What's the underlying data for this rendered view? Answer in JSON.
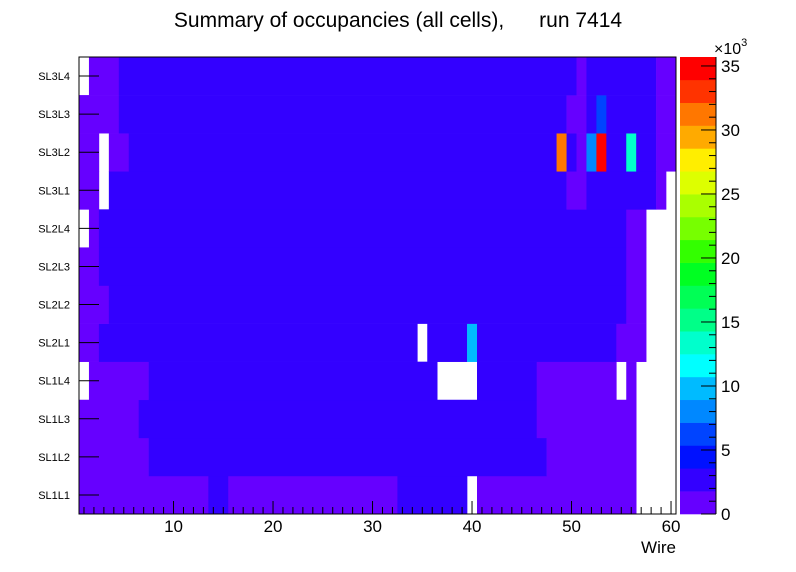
{
  "chart_data": {
    "type": "heatmap",
    "title": "Summary of occupancies (all cells),      run 7414",
    "xlabel": "Wire",
    "ylabel": "",
    "xlim": [
      0.5,
      60.5
    ],
    "x_ticks": [
      10,
      20,
      30,
      40,
      50,
      60
    ],
    "y_categories": [
      "SL1L1",
      "SL1L2",
      "SL1L3",
      "SL1L4",
      "SL2L1",
      "SL2L2",
      "SL2L3",
      "SL2L4",
      "SL3L1",
      "SL3L2",
      "SL3L3",
      "SL3L4"
    ],
    "z_range": [
      0,
      35700
    ],
    "z_multiplier_label": "×10",
    "z_multiplier_exp": "3",
    "z_ticks": [
      0,
      5,
      10,
      15,
      20,
      25,
      30,
      35
    ],
    "palette": [
      "#6600ff",
      "#3300ff",
      "#0011ff",
      "#0044ff",
      "#0088ff",
      "#00bbff",
      "#00ffff",
      "#00ffcc",
      "#00ff88",
      "#00ff55",
      "#00ff22",
      "#33ff00",
      "#77ff00",
      "#aaff00",
      "#ddff00",
      "#ffee00",
      "#ffaa00",
      "#ff7700",
      "#ff3300",
      "#ff0000"
    ],
    "rows_note": "segments per row: [first wire, last wire, occupancy]; null = empty bin",
    "rows": [
      [
        [
          1,
          13,
          900
        ],
        [
          14,
          15,
          2700
        ],
        [
          16,
          32,
          900
        ],
        [
          33,
          39,
          2700
        ],
        [
          40,
          40,
          null
        ],
        [
          41,
          56,
          900
        ],
        [
          57,
          60,
          null
        ]
      ],
      [
        [
          1,
          7,
          900
        ],
        [
          8,
          47,
          2700
        ],
        [
          48,
          56,
          900
        ],
        [
          57,
          60,
          null
        ]
      ],
      [
        [
          1,
          6,
          900
        ],
        [
          7,
          46,
          2700
        ],
        [
          47,
          56,
          900
        ],
        [
          57,
          60,
          null
        ]
      ],
      [
        [
          1,
          1,
          null
        ],
        [
          2,
          7,
          900
        ],
        [
          8,
          36,
          2700
        ],
        [
          37,
          40,
          null
        ],
        [
          41,
          46,
          2700
        ],
        [
          47,
          54,
          900
        ],
        [
          55,
          55,
          null
        ],
        [
          56,
          56,
          900
        ],
        [
          57,
          60,
          null
        ]
      ],
      [
        [
          1,
          2,
          900
        ],
        [
          3,
          34,
          2700
        ],
        [
          35,
          35,
          null
        ],
        [
          36,
          39,
          2700
        ],
        [
          40,
          40,
          9800
        ],
        [
          41,
          54,
          2700
        ],
        [
          55,
          57,
          900
        ],
        [
          58,
          60,
          null
        ]
      ],
      [
        [
          1,
          3,
          900
        ],
        [
          4,
          55,
          2700
        ],
        [
          56,
          57,
          900
        ],
        [
          58,
          60,
          null
        ]
      ],
      [
        [
          1,
          2,
          900
        ],
        [
          3,
          55,
          2700
        ],
        [
          56,
          57,
          900
        ],
        [
          58,
          60,
          null
        ]
      ],
      [
        [
          1,
          1,
          null
        ],
        [
          2,
          2,
          900
        ],
        [
          3,
          55,
          2700
        ],
        [
          56,
          57,
          900
        ],
        [
          58,
          60,
          null
        ]
      ],
      [
        [
          1,
          2,
          900
        ],
        [
          3,
          3,
          null
        ],
        [
          4,
          49,
          2700
        ],
        [
          50,
          51,
          900
        ],
        [
          52,
          58,
          2700
        ],
        [
          59,
          59,
          900
        ],
        [
          60,
          60,
          null
        ]
      ],
      [
        [
          1,
          2,
          900
        ],
        [
          3,
          3,
          null
        ],
        [
          4,
          5,
          900
        ],
        [
          6,
          48,
          2700
        ],
        [
          49,
          49,
          31200
        ],
        [
          50,
          50,
          2700
        ],
        [
          51,
          51,
          900
        ],
        [
          52,
          52,
          8000
        ],
        [
          53,
          53,
          35000
        ],
        [
          54,
          55,
          2700
        ],
        [
          56,
          56,
          13400
        ],
        [
          57,
          58,
          2700
        ],
        [
          59,
          60,
          900
        ]
      ],
      [
        [
          1,
          4,
          900
        ],
        [
          5,
          49,
          2700
        ],
        [
          50,
          51,
          900
        ],
        [
          52,
          52,
          2700
        ],
        [
          53,
          53,
          6200
        ],
        [
          54,
          58,
          2700
        ],
        [
          59,
          60,
          900
        ]
      ],
      [
        [
          1,
          1,
          null
        ],
        [
          2,
          4,
          900
        ],
        [
          5,
          50,
          2700
        ],
        [
          51,
          51,
          900
        ],
        [
          52,
          58,
          2700
        ],
        [
          59,
          60,
          900
        ]
      ]
    ]
  }
}
